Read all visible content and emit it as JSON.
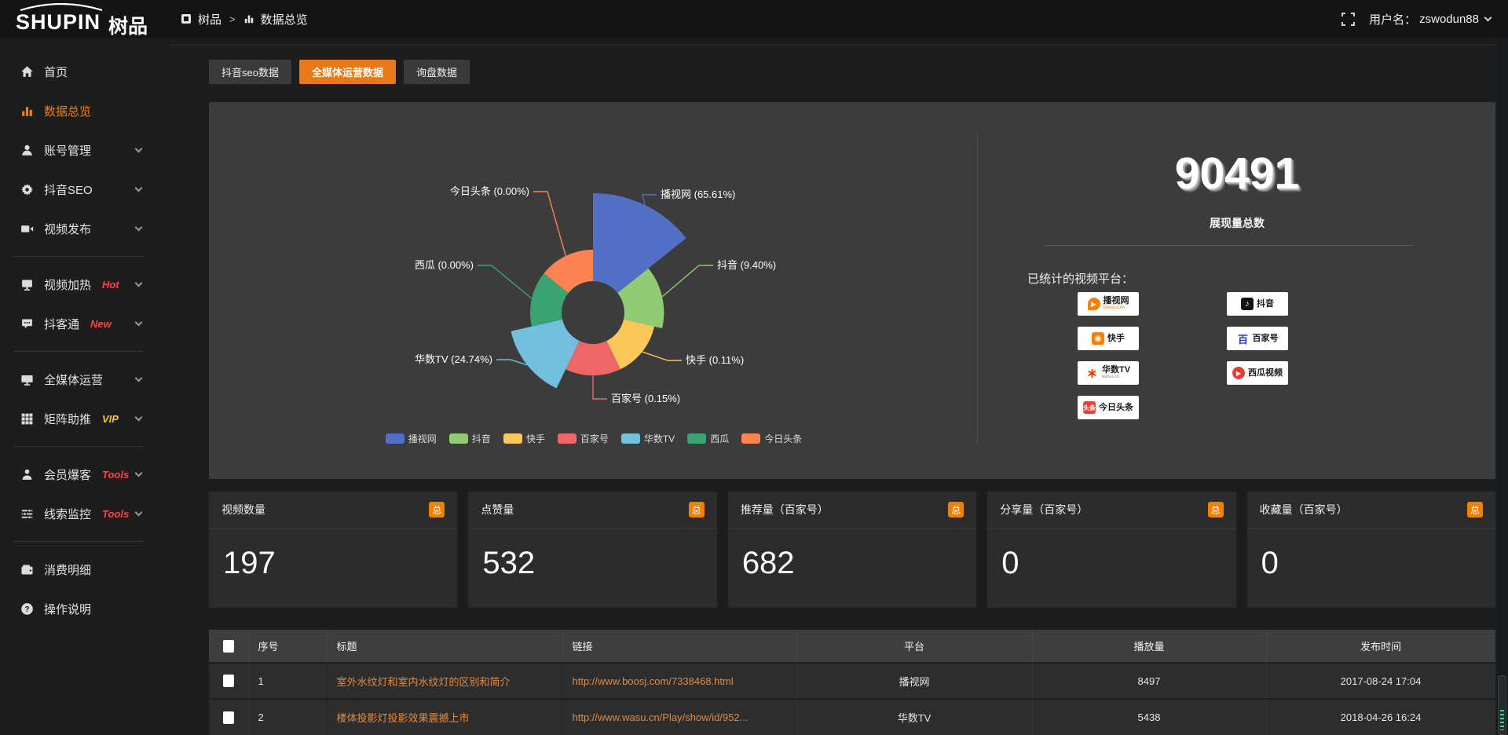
{
  "header": {
    "logo_primary": "SHUPIN",
    "logo_secondary": "树品",
    "breadcrumb": {
      "root": "树品",
      "separator": ">",
      "current": "数据总览"
    },
    "username_label": "用户名：",
    "username": "zswodun88"
  },
  "sidebar": {
    "items": [
      {
        "label": "首页",
        "icon": "home-icon",
        "active": false,
        "chevron": false,
        "badge": "",
        "divider_after": false
      },
      {
        "label": "数据总览",
        "icon": "bar-chart-icon",
        "active": true,
        "chevron": false,
        "badge": "",
        "divider_after": false
      },
      {
        "label": "账号管理",
        "icon": "user-icon",
        "active": false,
        "chevron": true,
        "badge": "",
        "divider_after": false
      },
      {
        "label": "抖音SEO",
        "icon": "gear-icon",
        "active": false,
        "chevron": true,
        "badge": "",
        "divider_after": false
      },
      {
        "label": "视频发布",
        "icon": "video-icon",
        "active": false,
        "chevron": true,
        "badge": "",
        "divider_after": true
      },
      {
        "label": "视频加热",
        "icon": "screen-icon",
        "active": false,
        "chevron": true,
        "badge": "Hot",
        "badge_color": "#FF4343",
        "divider_after": false
      },
      {
        "label": "抖客通",
        "icon": "chat-icon",
        "active": false,
        "chevron": true,
        "badge": "New",
        "badge_color": "#FF4343",
        "divider_after": true
      },
      {
        "label": "全媒体运营",
        "icon": "monitor-icon",
        "active": false,
        "chevron": true,
        "badge": "",
        "divider_after": false
      },
      {
        "label": "矩阵助推",
        "icon": "grid-icon",
        "active": false,
        "chevron": true,
        "badge": "VIP",
        "badge_color": "#F6C642",
        "divider_after": true
      },
      {
        "label": "会员爆客",
        "icon": "person-icon",
        "active": false,
        "chevron": true,
        "badge": "Tools",
        "badge_color": "#FF4343",
        "divider_after": false
      },
      {
        "label": "线索监控",
        "icon": "sliders-icon",
        "active": false,
        "chevron": true,
        "badge": "Tools",
        "badge_color": "#FF4343",
        "divider_after": true
      },
      {
        "label": "消费明细",
        "icon": "wallet-icon",
        "active": false,
        "chevron": false,
        "badge": "",
        "divider_after": false
      },
      {
        "label": "操作说明",
        "icon": "help-icon",
        "active": false,
        "chevron": false,
        "badge": "",
        "divider_after": false
      }
    ]
  },
  "tabs": [
    {
      "label": "抖音seo数据",
      "active": false
    },
    {
      "label": "全媒体运营数据",
      "active": true
    },
    {
      "label": "询盘数据",
      "active": false
    }
  ],
  "chart_data": {
    "type": "pie",
    "variant": "nightingale-rose",
    "title": "",
    "legend_position": "bottom",
    "label_format": "{name} ({value}%)",
    "series": [
      {
        "name": "播视网",
        "value_pct": 65.61,
        "color": "#5470C6"
      },
      {
        "name": "抖音",
        "value_pct": 9.4,
        "color": "#91CC75"
      },
      {
        "name": "快手",
        "value_pct": 0.11,
        "color": "#FAC858"
      },
      {
        "name": "百家号",
        "value_pct": 0.15,
        "color": "#EE6666"
      },
      {
        "name": "华数TV",
        "value_pct": 24.74,
        "color": "#73C0DE"
      },
      {
        "name": "西瓜",
        "value_pct": 0.0,
        "color": "#3BA272"
      },
      {
        "name": "今日头条",
        "value_pct": 0.0,
        "color": "#FC8452"
      }
    ],
    "legend": [
      "播视网",
      "抖音",
      "快手",
      "百家号",
      "华数TV",
      "西瓜",
      "今日头条"
    ]
  },
  "summary": {
    "total_value": "90491",
    "total_label": "展现量总数",
    "platforms_label": "已统计的视频平台：",
    "platform_columns": {
      "left": [
        {
          "name": "播视网",
          "sub": "boosj.com",
          "icon": "boosj-logo"
        },
        {
          "name": "快手",
          "sub": "",
          "icon": "kuaishou-logo"
        },
        {
          "name": "华数TV",
          "sub": "wasu.cn",
          "icon": "wasu-logo"
        },
        {
          "name": "今日头条",
          "sub": "",
          "icon": "toutiao-logo"
        }
      ],
      "right": [
        {
          "name": "抖音",
          "sub": "",
          "icon": "douyin-logo"
        },
        {
          "name": "百家号",
          "sub": "",
          "icon": "baijiahao-logo"
        },
        {
          "name": "西瓜视频",
          "sub": "",
          "icon": "xigua-logo"
        }
      ]
    }
  },
  "stat_cards": [
    {
      "label": "视频数量",
      "badge": "总",
      "value": "197"
    },
    {
      "label": "点赞量",
      "badge": "总",
      "value": "532"
    },
    {
      "label": "推荐量（百家号）",
      "badge": "总",
      "value": "682"
    },
    {
      "label": "分享量（百家号）",
      "badge": "总",
      "value": "0"
    },
    {
      "label": "收藏量（百家号）",
      "badge": "总",
      "value": "0"
    }
  ],
  "table": {
    "headers": [
      "序号",
      "标题",
      "链接",
      "平台",
      "播放量",
      "发布时间"
    ],
    "rows": [
      {
        "no": "1",
        "title": "室外水纹灯和室内水纹灯的区别和简介",
        "link": "http://www.boosj.com/7338468.html",
        "platform": "播视网",
        "plays": "8497",
        "time": "2017-08-24 17:04"
      },
      {
        "no": "2",
        "title": "楼体投影灯投影效果震撼上市",
        "link": "http://www.wasu.cn/Play/show/id/952...",
        "platform": "华数TV",
        "plays": "5438",
        "time": "2018-04-26 16:24"
      }
    ]
  },
  "colors": {
    "accent_orange": "#E87818",
    "badge_orange": "#F08200",
    "link_orange": "#E9893C",
    "hot_red": "#FF4343",
    "vip_gold": "#F6C642",
    "panel_bg": "#3c3c3c"
  }
}
